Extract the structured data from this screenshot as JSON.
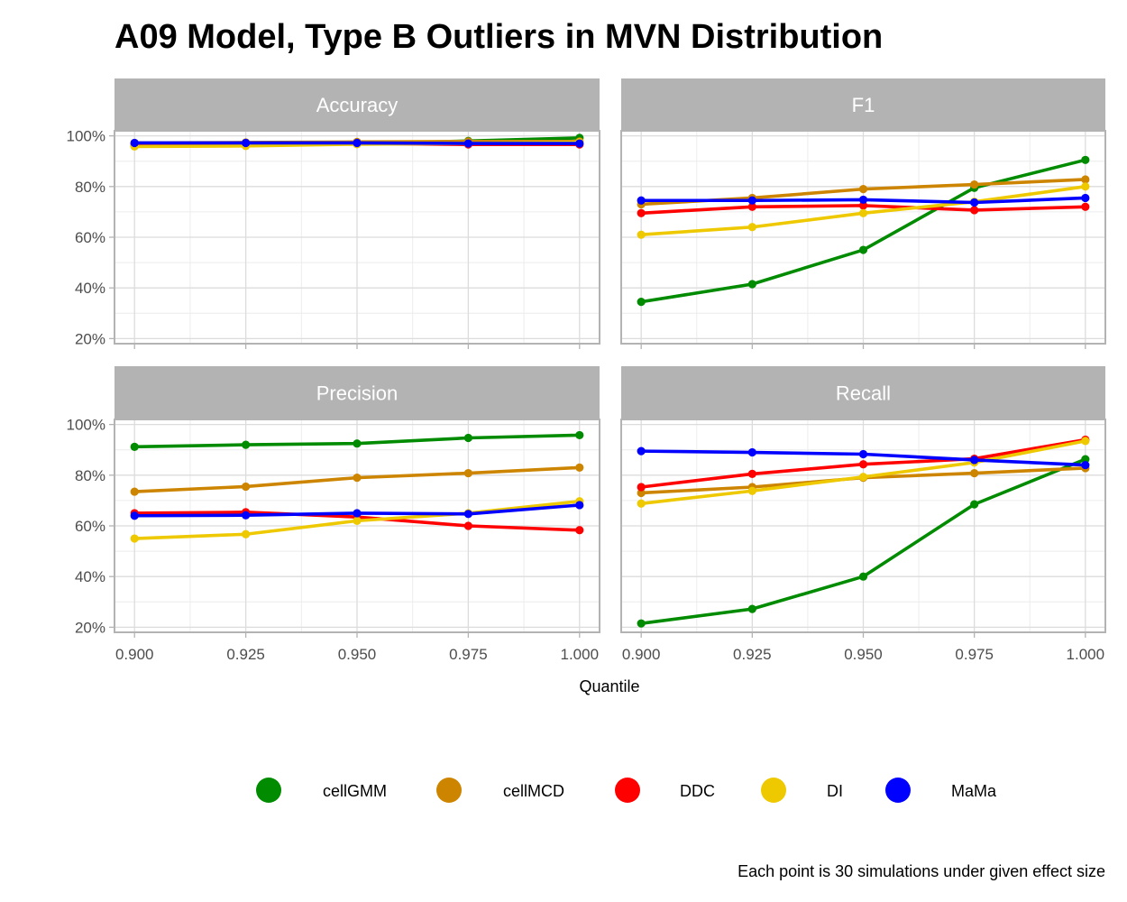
{
  "chart_data": {
    "type": "line",
    "title": "A09 Model, Type B Outliers in MVN Distribution",
    "xlabel": "Quantile",
    "ylabel": "",
    "caption": "Each point is 30 simulations under given effect size",
    "x": [
      0.9,
      0.925,
      0.95,
      0.975,
      1.0
    ],
    "x_tick_labels": [
      "0.900",
      "0.925",
      "0.950",
      "0.975",
      "1.000"
    ],
    "ylim": [
      0.18,
      1.02
    ],
    "y_ticks": [
      0.2,
      0.4,
      0.6,
      0.8,
      1.0
    ],
    "y_tick_labels": [
      "20%",
      "40%",
      "60%",
      "80%",
      "100%"
    ],
    "grid": true,
    "legend_position": "bottom",
    "legend": [
      {
        "name": "cellGMM",
        "color": "#008b00"
      },
      {
        "name": "cellMCD",
        "color": "#cd8500"
      },
      {
        "name": "DDC",
        "color": "#ff0000"
      },
      {
        "name": "DI",
        "color": "#eec900"
      },
      {
        "name": "MaMa",
        "color": "#0000ff"
      }
    ],
    "panels": [
      {
        "title": "Accuracy",
        "series": [
          {
            "name": "cellGMM",
            "values": [
              0.96,
              0.962,
              0.969,
              0.98,
              0.992
            ]
          },
          {
            "name": "cellMCD",
            "values": [
              0.972,
              0.974,
              0.976,
              0.978,
              0.978
            ]
          },
          {
            "name": "DDC",
            "values": [
              0.968,
              0.968,
              0.97,
              0.966,
              0.966
            ]
          },
          {
            "name": "DI",
            "values": [
              0.958,
              0.96,
              0.967,
              0.97,
              0.975
            ]
          },
          {
            "name": "MaMa",
            "values": [
              0.972,
              0.972,
              0.972,
              0.97,
              0.97
            ]
          }
        ]
      },
      {
        "title": "F1",
        "series": [
          {
            "name": "cellGMM",
            "values": [
              0.345,
              0.415,
              0.55,
              0.795,
              0.905
            ]
          },
          {
            "name": "cellMCD",
            "values": [
              0.73,
              0.755,
              0.79,
              0.808,
              0.828
            ]
          },
          {
            "name": "DDC",
            "values": [
              0.695,
              0.72,
              0.725,
              0.707,
              0.72
            ]
          },
          {
            "name": "DI",
            "values": [
              0.61,
              0.64,
              0.695,
              0.74,
              0.8
            ]
          },
          {
            "name": "MaMa",
            "values": [
              0.745,
              0.745,
              0.748,
              0.737,
              0.755
            ]
          }
        ]
      },
      {
        "title": "Precision",
        "series": [
          {
            "name": "cellGMM",
            "values": [
              0.912,
              0.92,
              0.925,
              0.947,
              0.958
            ]
          },
          {
            "name": "cellMCD",
            "values": [
              0.735,
              0.755,
              0.79,
              0.808,
              0.83
            ]
          },
          {
            "name": "DDC",
            "values": [
              0.65,
              0.654,
              0.635,
              0.6,
              0.583
            ]
          },
          {
            "name": "DI",
            "values": [
              0.55,
              0.567,
              0.62,
              0.65,
              0.697
            ]
          },
          {
            "name": "MaMa",
            "values": [
              0.64,
              0.642,
              0.65,
              0.647,
              0.682
            ]
          }
        ]
      },
      {
        "title": "Recall",
        "series": [
          {
            "name": "cellGMM",
            "values": [
              0.215,
              0.272,
              0.4,
              0.685,
              0.863
            ]
          },
          {
            "name": "cellMCD",
            "values": [
              0.73,
              0.753,
              0.79,
              0.808,
              0.828
            ]
          },
          {
            "name": "DDC",
            "values": [
              0.753,
              0.805,
              0.843,
              0.865,
              0.94
            ]
          },
          {
            "name": "DI",
            "values": [
              0.688,
              0.738,
              0.793,
              0.85,
              0.935
            ]
          },
          {
            "name": "MaMa",
            "values": [
              0.895,
              0.89,
              0.883,
              0.86,
              0.84
            ]
          }
        ]
      }
    ]
  }
}
